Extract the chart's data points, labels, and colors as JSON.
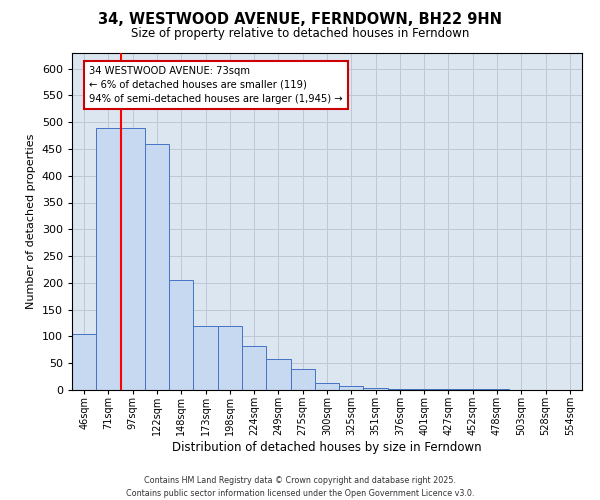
{
  "title_line1": "34, WESTWOOD AVENUE, FERNDOWN, BH22 9HN",
  "title_line2": "Size of property relative to detached houses in Ferndown",
  "xlabel": "Distribution of detached houses by size in Ferndown",
  "ylabel": "Number of detached properties",
  "footnote": "Contains HM Land Registry data © Crown copyright and database right 2025.\nContains public sector information licensed under the Open Government Licence v3.0.",
  "bin_labels": [
    "46sqm",
    "71sqm",
    "97sqm",
    "122sqm",
    "148sqm",
    "173sqm",
    "198sqm",
    "224sqm",
    "249sqm",
    "275sqm",
    "300sqm",
    "325sqm",
    "351sqm",
    "376sqm",
    "401sqm",
    "427sqm",
    "452sqm",
    "478sqm",
    "503sqm",
    "528sqm",
    "554sqm"
  ],
  "bar_heights": [
    105,
    490,
    490,
    460,
    205,
    120,
    120,
    83,
    57,
    40,
    13,
    8,
    4,
    2,
    2,
    1,
    1,
    1,
    0,
    0,
    0
  ],
  "bar_color": "#c6d9f0",
  "bar_edge_color": "#4472c4",
  "grid_color": "#c0c8d8",
  "background_color": "#dce6f1",
  "red_line_bin": 1.5,
  "annotation_text": "34 WESTWOOD AVENUE: 73sqm\n← 6% of detached houses are smaller (119)\n94% of semi-detached houses are larger (1,945) →",
  "annotation_box_color": "#ffffff",
  "annotation_box_edge_color": "#cc0000",
  "ylim": [
    0,
    630
  ],
  "yticks": [
    0,
    50,
    100,
    150,
    200,
    250,
    300,
    350,
    400,
    450,
    500,
    550,
    600
  ]
}
